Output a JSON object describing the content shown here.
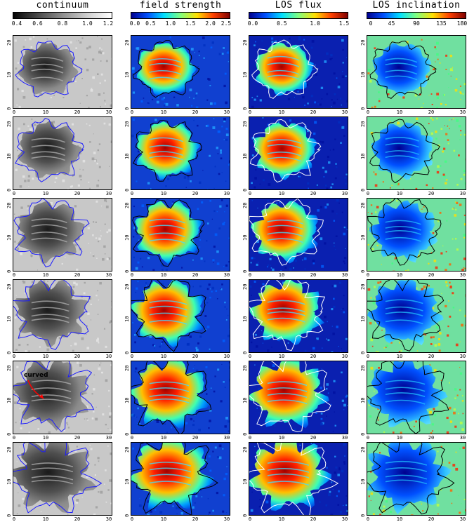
{
  "columns": [
    {
      "title": "continuum",
      "ticks": [
        "0.4",
        "0.6",
        "0.8",
        "1.0",
        "1.2"
      ],
      "colormap": "gray",
      "colors": [
        "#050505",
        "#4a4a4a",
        "#8f8f8f",
        "#cfcfcf",
        "#ffffff"
      ],
      "contour_color": "#1a1aff"
    },
    {
      "title": "field strength",
      "ticks": [
        "0.0",
        "0.5",
        "1.0",
        "1.5",
        "2.0",
        "2.5"
      ],
      "colormap": "jet",
      "colors": [
        "#00008f",
        "#0050ff",
        "#00e0ff",
        "#80ff80",
        "#ffe000",
        "#ff4000",
        "#800000"
      ],
      "contour_color": "#000000"
    },
    {
      "title": "LOS flux",
      "ticks": [
        "0.0",
        "0.5",
        "1.0",
        "1.5"
      ],
      "colormap": "jet",
      "colors": [
        "#00008f",
        "#0050ff",
        "#00e0ff",
        "#80ff80",
        "#ffe000",
        "#ff4000",
        "#800000"
      ],
      "contour_color": "#ffffff"
    },
    {
      "title": "LOS inclination",
      "ticks": [
        "0",
        "45",
        "90",
        "135",
        "180"
      ],
      "colormap": "jet",
      "colors": [
        "#00008f",
        "#0050ff",
        "#00e0ff",
        "#80ff80",
        "#ffe000",
        "#ff4000",
        "#800000"
      ],
      "contour_color": "#000000"
    }
  ],
  "axes": {
    "y_ticks": [
      "0",
      "10",
      "20"
    ],
    "x_ticks": [
      "0",
      "10",
      "20",
      "30"
    ]
  },
  "annotation": {
    "text": "curved",
    "color": "#ff0000"
  }
}
